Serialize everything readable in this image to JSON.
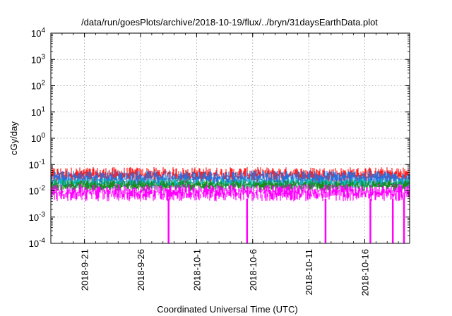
{
  "chart_data": {
    "type": "line",
    "title": "/data/run/goesPlots/archive/2018-10-19/flux/../bryn/31daysEarthData.plot",
    "xlabel": "Coordinated Universal Time (UTC)",
    "ylabel": "cGy/day",
    "yscale": "log",
    "ylim": [
      0.0001,
      10000
    ],
    "xlim": [
      "2018-09-18",
      "2018-10-20"
    ],
    "grid": true,
    "legend": "none",
    "x_ticks": [
      "2018-9-21",
      "2018-9-26",
      "2018-10-1",
      "2018-10-6",
      "2018-10-11",
      "2018-10-16"
    ],
    "y_ticks": [
      {
        "value": 0.0001,
        "base": "10",
        "exp": "-4"
      },
      {
        "value": 0.001,
        "base": "10",
        "exp": "-3"
      },
      {
        "value": 0.01,
        "base": "10",
        "exp": "-2"
      },
      {
        "value": 0.1,
        "base": "10",
        "exp": "-1"
      },
      {
        "value": 1,
        "base": "10",
        "exp": "0"
      },
      {
        "value": 10,
        "base": "10",
        "exp": "1"
      },
      {
        "value": 100,
        "base": "10",
        "exp": "2"
      },
      {
        "value": 1000,
        "base": "10",
        "exp": "3"
      },
      {
        "value": 10000,
        "base": "10",
        "exp": "4"
      }
    ],
    "series": [
      {
        "color": "#ff2020",
        "lo": 0.02,
        "hi": 0.08
      },
      {
        "color": "#2a6edb",
        "lo": 0.015,
        "hi": 0.06
      },
      {
        "color": "#12b8b8",
        "lo": 0.012,
        "hi": 0.03
      },
      {
        "color": "#1a8a1a",
        "lo": 0.01,
        "hi": 0.025
      },
      {
        "color": "#ff00ff",
        "lo": 0.004,
        "hi": 0.018
      }
    ],
    "dropouts": {
      "series_color": "#ff00ff",
      "dates": [
        "2018-09-28",
        "2018-10-05",
        "2018-10-12",
        "2018-10-16",
        "2018-10-18",
        "2018-10-19"
      ],
      "value": 0.0001
    }
  }
}
